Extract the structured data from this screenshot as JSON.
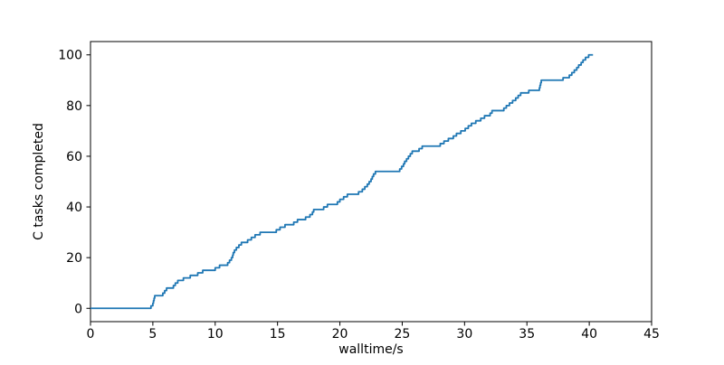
{
  "figure": {
    "background": "#ffffff"
  },
  "chart_data": {
    "type": "line",
    "line_style": "step-post",
    "title": "",
    "xlabel": "walltime/s",
    "ylabel": "C tasks completed",
    "xlim": [
      0,
      45
    ],
    "ylim": [
      -5.25,
      105.25
    ],
    "x_ticks": [
      0,
      5,
      10,
      15,
      20,
      25,
      30,
      35,
      40,
      45
    ],
    "y_ticks": [
      0,
      20,
      40,
      60,
      80,
      100
    ],
    "grid": false,
    "legend": "none",
    "series": [
      {
        "name": "C tasks completed",
        "color": "#1f77b4",
        "start_point": [
          0,
          0
        ],
        "completion_times": [
          4.85,
          5.0,
          5.05,
          5.1,
          5.15,
          5.8,
          5.95,
          6.1,
          6.65,
          6.8,
          7.0,
          7.45,
          8.0,
          8.6,
          9.0,
          10.0,
          10.35,
          11.0,
          11.15,
          11.3,
          11.4,
          11.45,
          11.55,
          11.7,
          11.9,
          12.1,
          12.6,
          12.9,
          13.2,
          13.6,
          14.9,
          15.2,
          15.6,
          16.3,
          16.6,
          17.25,
          17.6,
          17.8,
          17.9,
          18.7,
          19.0,
          19.8,
          20.0,
          20.3,
          20.6,
          21.5,
          21.8,
          22.0,
          22.2,
          22.35,
          22.5,
          22.6,
          22.7,
          22.85,
          24.8,
          24.95,
          25.1,
          25.2,
          25.35,
          25.5,
          25.65,
          25.8,
          26.35,
          26.6,
          28.05,
          28.35,
          28.7,
          29.1,
          29.35,
          29.7,
          30.05,
          30.3,
          30.55,
          30.9,
          31.3,
          31.6,
          32.05,
          32.2,
          33.15,
          33.35,
          33.6,
          33.85,
          34.1,
          34.3,
          34.5,
          35.15,
          36.0,
          36.05,
          36.1,
          36.15,
          37.9,
          38.4,
          38.6,
          38.8,
          39.0,
          39.15,
          39.35,
          39.5,
          39.7,
          39.95
        ],
        "final_value": 100,
        "line_end_x": 40.3
      }
    ],
    "colors": {
      "line": "#1f77b4",
      "spines": "#000000",
      "ticks": "#000000",
      "text": "#000000"
    }
  }
}
